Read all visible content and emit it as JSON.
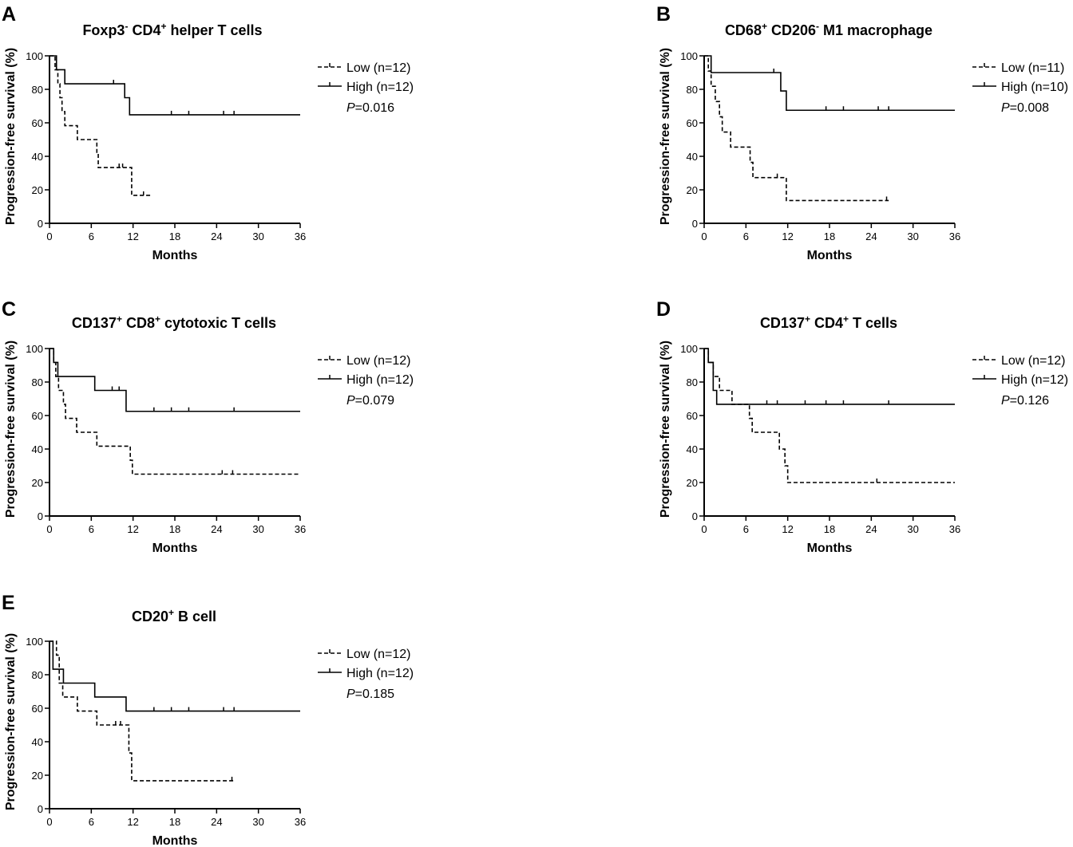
{
  "chart_data": [
    {
      "type": "line",
      "panel": "A",
      "title": {
        "prefix": "Foxp3",
        "prefix_sup": "-",
        "middle": " CD4",
        "middle_sup": "+",
        "suffix": " helper T cells"
      },
      "xlabel": "Months",
      "ylabel": "Progression-free survival (%)",
      "xlim": [
        0,
        36
      ],
      "ylim": [
        0,
        100
      ],
      "xticks": [
        0,
        6,
        12,
        18,
        24,
        30,
        36
      ],
      "yticks": [
        0,
        20,
        40,
        60,
        80,
        100
      ],
      "p_label": "P",
      "p_value": "=0.016",
      "series": [
        {
          "name": "Low (n=12)",
          "style": "dashed",
          "steps": [
            [
              0,
              100
            ],
            [
              0.8,
              91.7
            ],
            [
              1.2,
              83.3
            ],
            [
              1.5,
              75
            ],
            [
              1.8,
              66.7
            ],
            [
              2.2,
              58.3
            ],
            [
              4,
              50
            ],
            [
              6.8,
              41.7
            ],
            [
              7,
              33.3
            ],
            [
              11.8,
              16.7
            ]
          ],
          "end": 14.5,
          "censors": [
            10,
            10.5,
            13.5
          ]
        },
        {
          "name": "High (n=12)",
          "style": "solid",
          "steps": [
            [
              0,
              100
            ],
            [
              1,
              91.7
            ],
            [
              2.2,
              83.3
            ],
            [
              10.8,
              75
            ],
            [
              11.5,
              64.8
            ]
          ],
          "end": 36,
          "censors": [
            9.2,
            17.5,
            20,
            25,
            26.5
          ]
        }
      ]
    },
    {
      "type": "line",
      "panel": "B",
      "title": {
        "prefix": "CD68",
        "prefix_sup": "+",
        "middle": " CD206",
        "middle_sup": "-",
        "suffix": " M1 macrophage"
      },
      "xlabel": "Months",
      "ylabel": "Progression-free survival (%)",
      "xlim": [
        0,
        36
      ],
      "ylim": [
        0,
        100
      ],
      "xticks": [
        0,
        6,
        12,
        18,
        24,
        30,
        36
      ],
      "yticks": [
        0,
        20,
        40,
        60,
        80,
        100
      ],
      "p_label": "P",
      "p_value": "=0.008",
      "series": [
        {
          "name": "Low (n=11)",
          "style": "dashed",
          "steps": [
            [
              0,
              100
            ],
            [
              0.6,
              90.9
            ],
            [
              1,
              81.8
            ],
            [
              1.6,
              72.7
            ],
            [
              2.2,
              63.6
            ],
            [
              2.6,
              54.5
            ],
            [
              3.8,
              45.5
            ],
            [
              6.6,
              36.4
            ],
            [
              7,
              27.3
            ],
            [
              11.8,
              13.6
            ]
          ],
          "end": 26.5,
          "censors": [
            10.5,
            26.2
          ]
        },
        {
          "name": "High (n=10)",
          "style": "solid",
          "steps": [
            [
              0,
              100
            ],
            [
              1,
              90
            ],
            [
              11,
              79
            ],
            [
              11.8,
              67.5
            ]
          ],
          "end": 36,
          "censors": [
            10,
            17.5,
            20,
            25,
            26.5
          ]
        }
      ]
    },
    {
      "type": "line",
      "panel": "C",
      "title": {
        "prefix": "CD137",
        "prefix_sup": "+",
        "middle": " CD8",
        "middle_sup": "+",
        "suffix": " cytotoxic T cells"
      },
      "xlabel": "Months",
      "ylabel": "Progression-free survival (%)",
      "xlim": [
        0,
        36
      ],
      "ylim": [
        0,
        100
      ],
      "xticks": [
        0,
        6,
        12,
        18,
        24,
        30,
        36
      ],
      "yticks": [
        0,
        20,
        40,
        60,
        80,
        100
      ],
      "p_label": "P",
      "p_value": "=0.079",
      "series": [
        {
          "name": "Low (n=12)",
          "style": "dashed",
          "steps": [
            [
              0,
              100
            ],
            [
              0.6,
              91.7
            ],
            [
              0.9,
              83.3
            ],
            [
              1.3,
              75
            ],
            [
              2,
              66.7
            ],
            [
              2.3,
              58.3
            ],
            [
              3.9,
              50
            ],
            [
              6.8,
              41.7
            ],
            [
              11.6,
              33.3
            ],
            [
              11.9,
              25
            ]
          ],
          "end": 36,
          "censors": [
            24.8,
            26.3
          ]
        },
        {
          "name": "High (n=12)",
          "style": "solid",
          "steps": [
            [
              0,
              100
            ],
            [
              0.6,
              91.7
            ],
            [
              1.2,
              83.3
            ],
            [
              6.5,
              75
            ],
            [
              11,
              62.5
            ]
          ],
          "end": 36,
          "censors": [
            9,
            10,
            15,
            17.5,
            20,
            26.5
          ]
        }
      ]
    },
    {
      "type": "line",
      "panel": "D",
      "title": {
        "prefix": "CD137",
        "prefix_sup": "+",
        "middle": " CD4",
        "middle_sup": "+",
        "suffix": " T cells"
      },
      "xlabel": "Months",
      "ylabel": "Progression-free survival (%)",
      "xlim": [
        0,
        36
      ],
      "ylim": [
        0,
        100
      ],
      "xticks": [
        0,
        6,
        12,
        18,
        24,
        30,
        36
      ],
      "yticks": [
        0,
        20,
        40,
        60,
        80,
        100
      ],
      "p_label": "P",
      "p_value": "=0.126",
      "series": [
        {
          "name": "Low (n=12)",
          "style": "dashed",
          "steps": [
            [
              0,
              100
            ],
            [
              0.6,
              91.7
            ],
            [
              1.3,
              83.3
            ],
            [
              2.2,
              75
            ],
            [
              4,
              66.7
            ],
            [
              6.5,
              58.3
            ],
            [
              6.9,
              50
            ],
            [
              10.8,
              40
            ],
            [
              11.6,
              30
            ],
            [
              12,
              20
            ]
          ],
          "end": 36,
          "censors": [
            24.8
          ]
        },
        {
          "name": "High (n=12)",
          "style": "solid",
          "steps": [
            [
              0,
              100
            ],
            [
              0.6,
              91.7
            ],
            [
              1.3,
              75
            ],
            [
              1.8,
              66.7
            ]
          ],
          "end": 36,
          "censors": [
            9,
            10.5,
            14.5,
            17.5,
            20,
            26.5
          ]
        }
      ]
    },
    {
      "type": "line",
      "panel": "E",
      "title": {
        "prefix": "CD20",
        "prefix_sup": "+",
        "middle": " B cell",
        "middle_sup": "",
        "suffix": ""
      },
      "xlabel": "Months",
      "ylabel": "Progression-free survival (%)",
      "xlim": [
        0,
        36
      ],
      "ylim": [
        0,
        100
      ],
      "xticks": [
        0,
        6,
        12,
        18,
        24,
        30,
        36
      ],
      "yticks": [
        0,
        20,
        40,
        60,
        80,
        100
      ],
      "p_label": "P",
      "p_value": "=0.185",
      "series": [
        {
          "name": "Low (n=12)",
          "style": "dashed",
          "steps": [
            [
              0,
              100
            ],
            [
              1,
              91.7
            ],
            [
              1.4,
              75
            ],
            [
              1.9,
              66.7
            ],
            [
              4,
              58.3
            ],
            [
              6.8,
              50
            ],
            [
              11.4,
              33.3
            ],
            [
              11.8,
              16.7
            ]
          ],
          "end": 26.5,
          "censors": [
            9.5,
            10.2,
            26.2
          ]
        },
        {
          "name": "High (n=12)",
          "style": "solid",
          "steps": [
            [
              0,
              100
            ],
            [
              0.5,
              83.3
            ],
            [
              2,
              75
            ],
            [
              6.5,
              66.7
            ],
            [
              11,
              58.3
            ]
          ],
          "end": 36,
          "censors": [
            15,
            17.5,
            20,
            25,
            26.5
          ]
        }
      ]
    }
  ]
}
